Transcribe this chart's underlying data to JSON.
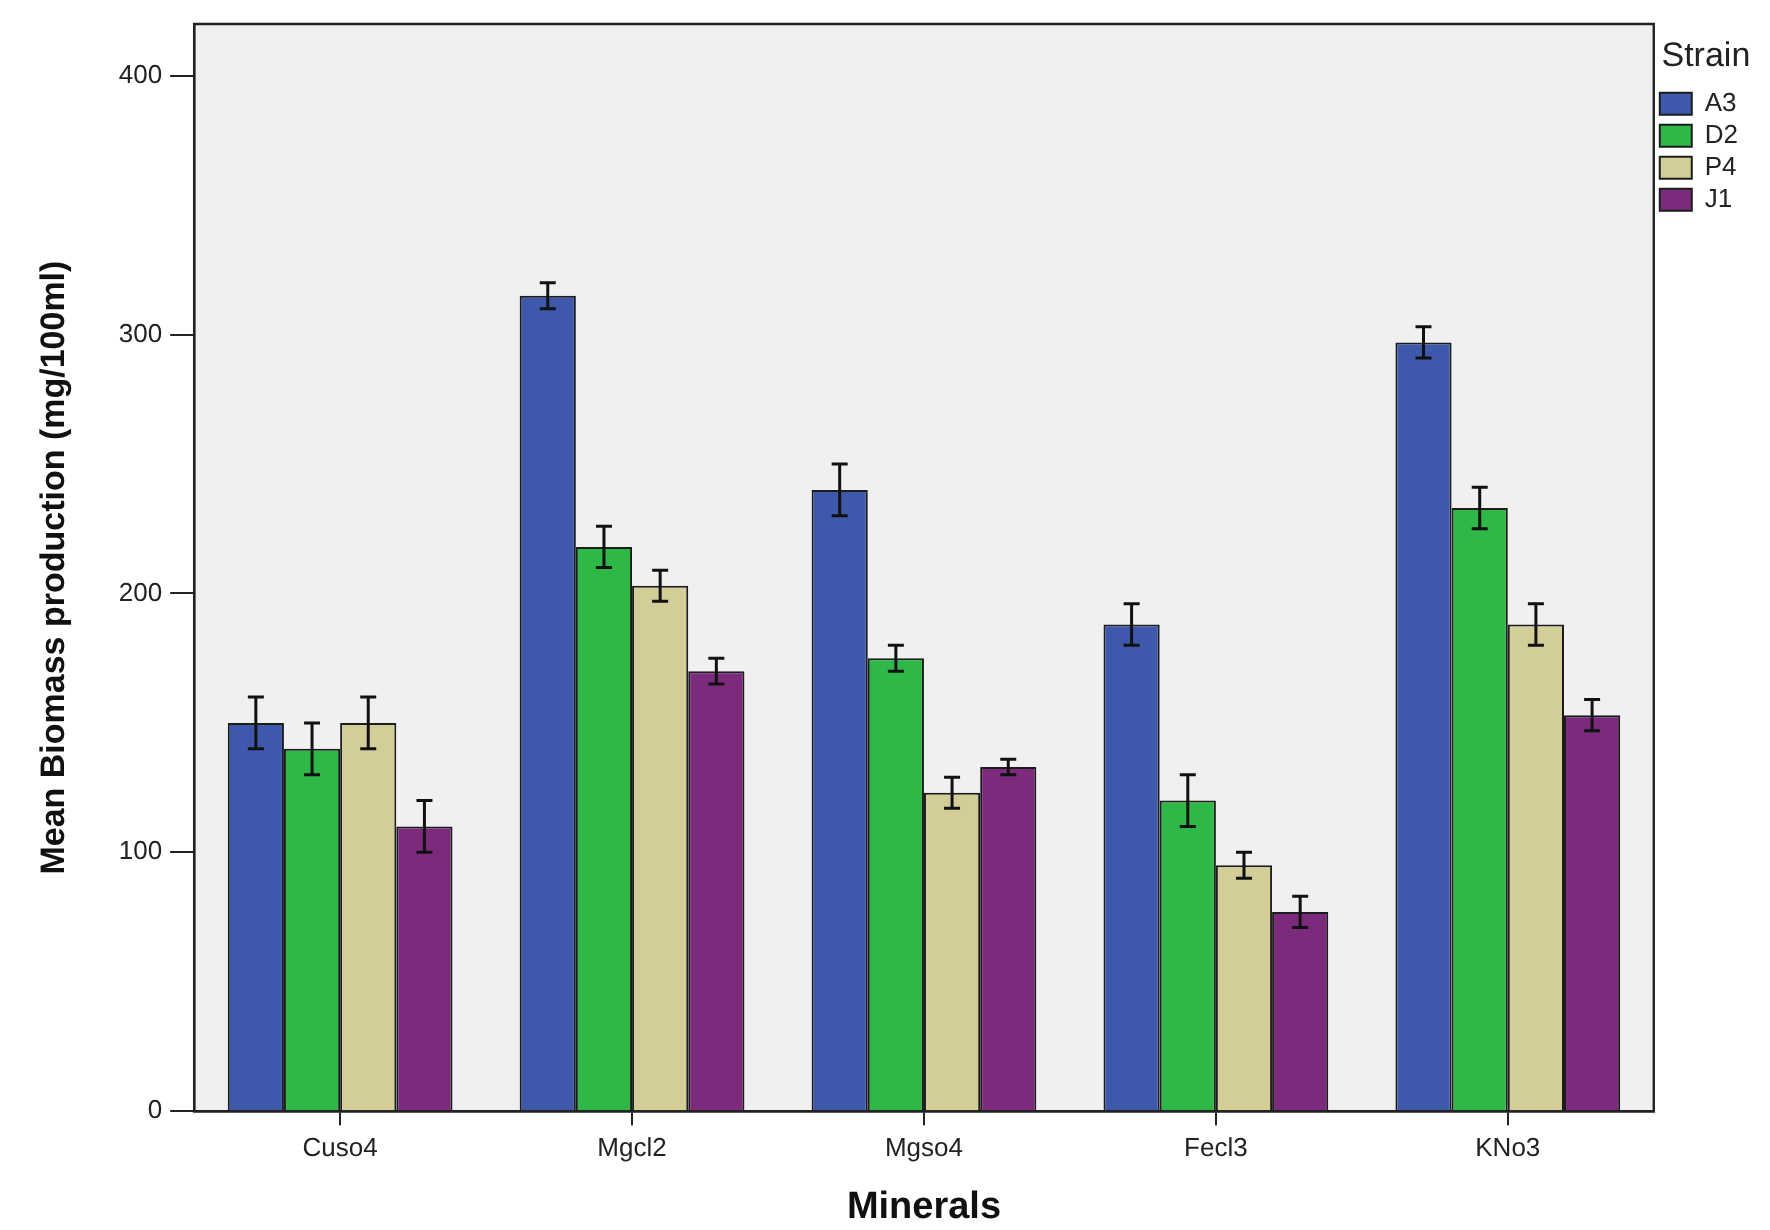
{
  "chart_data": {
    "type": "bar",
    "xlabel": "Minerals",
    "ylabel": "Mean Biomass production (mg/100ml)",
    "legend_title": "Strain",
    "legend": "top right",
    "categories": [
      "Cuso4",
      "Mgcl2",
      "Mgso4",
      "Fecl3",
      "KNo3"
    ],
    "series": [
      {
        "name": "A3",
        "color": "#3e58ac",
        "values": [
          150,
          315,
          240,
          188,
          297
        ],
        "errors": [
          10,
          5,
          10,
          8,
          6
        ]
      },
      {
        "name": "D2",
        "color": "#2eb848",
        "values": [
          140,
          218,
          175,
          120,
          233
        ],
        "errors": [
          10,
          8,
          5,
          10,
          8
        ]
      },
      {
        "name": "P4",
        "color": "#d3ce97",
        "values": [
          150,
          203,
          123,
          95,
          188
        ],
        "errors": [
          10,
          6,
          6,
          5,
          8
        ]
      },
      {
        "name": "J1",
        "color": "#7b2a7c",
        "values": [
          110,
          170,
          133,
          77,
          153
        ],
        "errors": [
          10,
          5,
          3,
          6,
          6
        ]
      }
    ],
    "ylim": [
      0,
      420
    ],
    "yticks": [
      0,
      100,
      200,
      300,
      400
    ]
  }
}
